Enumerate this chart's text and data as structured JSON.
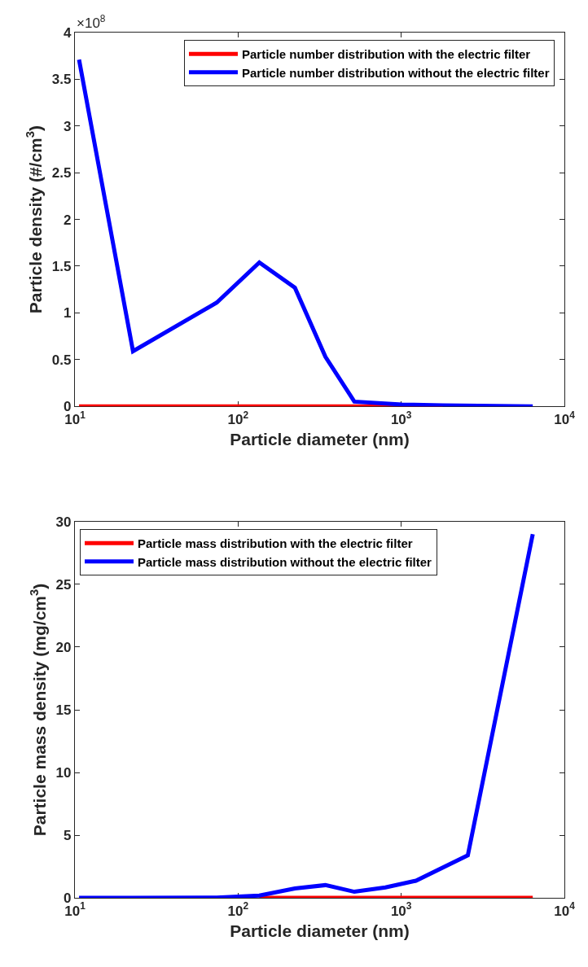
{
  "chart_data": [
    {
      "type": "line",
      "xlabel": "Particle diameter (nm)",
      "ylabel": "Particle density (#/cm$^{3}$)",
      "log": "x",
      "xlim": [
        10,
        10000
      ],
      "xticks": [
        {
          "value": 10,
          "label": "10$^{1}$"
        },
        {
          "value": 100,
          "label": "10$^{2}$"
        },
        {
          "value": 1000,
          "label": "10$^{3}$"
        },
        {
          "value": 10000,
          "label": "10$^{4}$"
        }
      ],
      "ylim": [
        0,
        4
      ],
      "yticks": [
        0,
        0.5,
        1,
        1.5,
        2,
        2.5,
        3,
        3.5,
        4
      ],
      "legend": "top right",
      "annotations": [
        "×10$^{8}$"
      ],
      "series": [
        {
          "name": "Particle number distribution with the electric filter",
          "color": "#ff0000",
          "x": [
            10.6,
            22.7,
            74,
            135,
            223,
            343,
            516,
            1010,
            1795
          ],
          "values": [
            0,
            0,
            0,
            0,
            0,
            0,
            0,
            0,
            0
          ]
        },
        {
          "name": "Particle number distribution without the electric filter",
          "color": "#0000ff",
          "x": [
            10.6,
            22.7,
            74,
            135,
            223,
            343,
            516,
            1010,
            1795,
            6400
          ],
          "values": [
            3.71,
            0.59,
            1.11,
            1.54,
            1.27,
            0.53,
            0.05,
            0.02,
            0.01,
            0
          ]
        }
      ]
    },
    {
      "type": "line",
      "xlabel": "Particle diameter (nm)",
      "ylabel": "Particle mass density (mg/cm$^{3}$)",
      "log": "x",
      "xlim": [
        10,
        10000
      ],
      "xticks": [
        {
          "value": 10,
          "label": "10$^{1}$"
        },
        {
          "value": 100,
          "label": "10$^{2}$"
        },
        {
          "value": 1000,
          "label": "10$^{3}$"
        },
        {
          "value": 10000,
          "label": "10$^{4}$"
        }
      ],
      "ylim": [
        0,
        30
      ],
      "yticks": [
        0,
        5,
        10,
        15,
        20,
        25,
        30
      ],
      "legend": "top left",
      "series": [
        {
          "name": "Particle mass distribution with the electric filter",
          "color": "#ff0000",
          "x": [
            135,
            223,
            343,
            516,
            800,
            1230,
            2560,
            6400
          ],
          "values": [
            0,
            0,
            0,
            0,
            0,
            0,
            0,
            0
          ]
        },
        {
          "name": "Particle mass distribution without the electric filter",
          "color": "#0000ff",
          "x": [
            10.6,
            22.7,
            74,
            135,
            223,
            343,
            516,
            800,
            1230,
            2560,
            6400
          ],
          "values": [
            0,
            0,
            0.02,
            0.19,
            0.75,
            1.02,
            0.49,
            0.84,
            1.37,
            3.4,
            29.0
          ]
        }
      ]
    }
  ]
}
